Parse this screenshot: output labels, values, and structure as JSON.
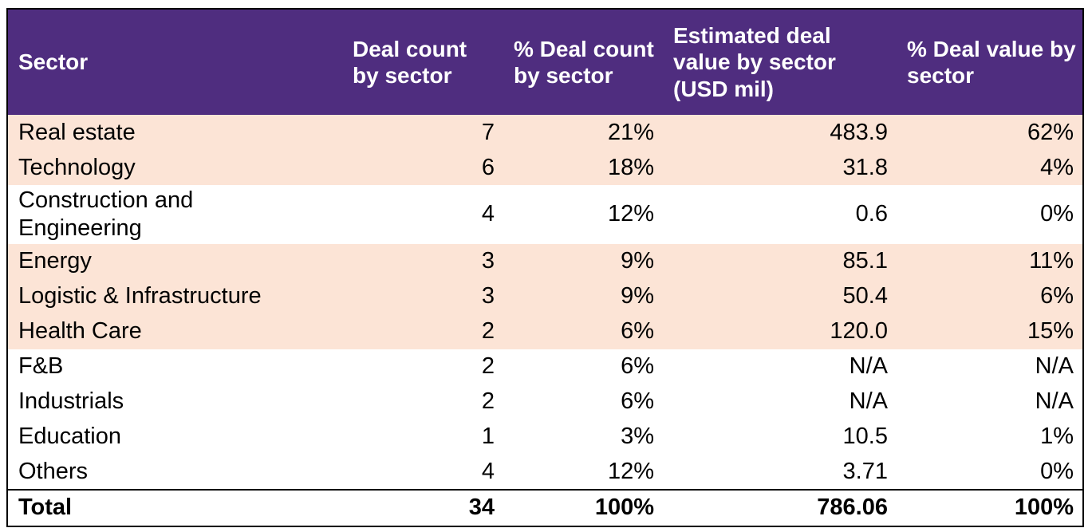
{
  "colors": {
    "header_bg": "#4F2D7F",
    "header_text": "#FFFFFF",
    "row_highlight": "#FCE4D6",
    "row_plain": "#FFFFFF",
    "border": "#000000",
    "body_text": "#000000"
  },
  "table": {
    "columns": [
      {
        "key": "sector",
        "label": "Sector"
      },
      {
        "key": "deal_count",
        "label": "Deal count by sector"
      },
      {
        "key": "pct_deal_count",
        "label": "% Deal count by sector"
      },
      {
        "key": "est_deal_value",
        "label": "Estimated deal value by sector (USD mil)"
      },
      {
        "key": "pct_deal_value",
        "label": "% Deal value by sector"
      }
    ],
    "rows": [
      {
        "sector": "Real estate",
        "deal_count": "7",
        "pct_deal_count": "21%",
        "est_deal_value": "483.9",
        "pct_deal_value": "62%",
        "highlight": true
      },
      {
        "sector": "Technology",
        "deal_count": "6",
        "pct_deal_count": "18%",
        "est_deal_value": "31.8",
        "pct_deal_value": "4%",
        "highlight": true
      },
      {
        "sector": "Construction and Engineering",
        "deal_count": "4",
        "pct_deal_count": "12%",
        "est_deal_value": "0.6",
        "pct_deal_value": "0%",
        "highlight": false
      },
      {
        "sector": "Energy",
        "deal_count": "3",
        "pct_deal_count": "9%",
        "est_deal_value": "85.1",
        "pct_deal_value": "11%",
        "highlight": true
      },
      {
        "sector": "Logistic & Infrastructure",
        "deal_count": "3",
        "pct_deal_count": "9%",
        "est_deal_value": "50.4",
        "pct_deal_value": "6%",
        "highlight": true
      },
      {
        "sector": "Health Care",
        "deal_count": "2",
        "pct_deal_count": "6%",
        "est_deal_value": "120.0",
        "pct_deal_value": "15%",
        "highlight": true
      },
      {
        "sector": "F&B",
        "deal_count": "2",
        "pct_deal_count": "6%",
        "est_deal_value": "N/A",
        "pct_deal_value": "N/A",
        "highlight": false
      },
      {
        "sector": "Industrials",
        "deal_count": "2",
        "pct_deal_count": "6%",
        "est_deal_value": "N/A",
        "pct_deal_value": "N/A",
        "highlight": false
      },
      {
        "sector": "Education",
        "deal_count": "1",
        "pct_deal_count": "3%",
        "est_deal_value": "10.5",
        "pct_deal_value": "1%",
        "highlight": false
      },
      {
        "sector": "Others",
        "deal_count": "4",
        "pct_deal_count": "12%",
        "est_deal_value": "3.71",
        "pct_deal_value": "0%",
        "highlight": false
      }
    ],
    "total": {
      "sector": "Total",
      "deal_count": "34",
      "pct_deal_count": "100%",
      "est_deal_value": "786.06",
      "pct_deal_value": "100%"
    }
  },
  "chart_data": {
    "type": "table",
    "title": "",
    "columns": [
      "Sector",
      "Deal count by sector",
      "% Deal count by sector",
      "Estimated deal value by sector (USD mil)",
      "% Deal value by sector"
    ],
    "rows": [
      [
        "Real estate",
        7,
        "21%",
        483.9,
        "62%"
      ],
      [
        "Technology",
        6,
        "18%",
        31.8,
        "4%"
      ],
      [
        "Construction and Engineering",
        4,
        "12%",
        0.6,
        "0%"
      ],
      [
        "Energy",
        3,
        "9%",
        85.1,
        "11%"
      ],
      [
        "Logistic & Infrastructure",
        3,
        "9%",
        50.4,
        "6%"
      ],
      [
        "Health Care",
        2,
        "6%",
        120.0,
        "15%"
      ],
      [
        "F&B",
        2,
        "6%",
        "N/A",
        "N/A"
      ],
      [
        "Industrials",
        2,
        "6%",
        "N/A",
        "N/A"
      ],
      [
        "Education",
        1,
        "3%",
        10.5,
        "1%"
      ],
      [
        "Others",
        4,
        "12%",
        3.71,
        "0%"
      ],
      [
        "Total",
        34,
        "100%",
        786.06,
        "100%"
      ]
    ],
    "layout_hints": {
      "header_bg": "#4F2D7F",
      "highlighted_rows": [
        "Real estate",
        "Technology",
        "Energy",
        "Logistic & Infrastructure",
        "Health Care"
      ],
      "highlight_color": "#FCE4D6",
      "numeric_alignment": "right"
    }
  }
}
